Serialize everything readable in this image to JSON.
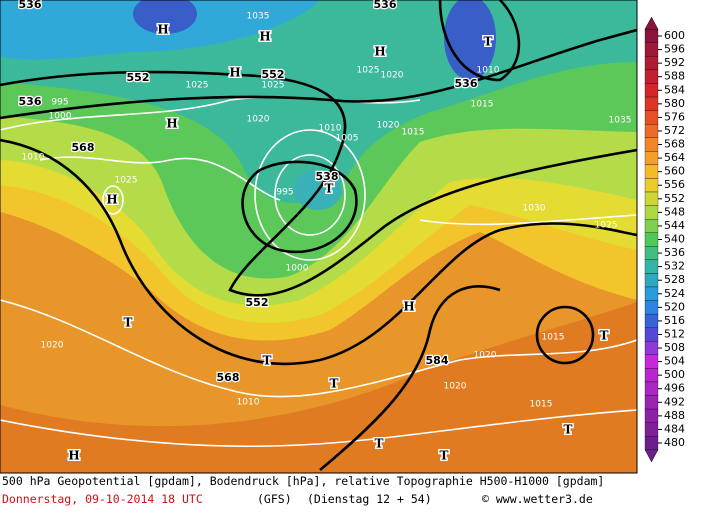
{
  "map": {
    "labels": [
      "536",
      "H",
      "1035",
      "H",
      "536",
      "T",
      "H",
      "1010",
      "552",
      "H",
      "552",
      "1025",
      "1025",
      "1025",
      "1020",
      "536",
      "1015",
      "536",
      "995",
      "1000",
      "H",
      "1020",
      "1010",
      "1005",
      "1020",
      "1015",
      "1035",
      "568",
      "1010",
      "1025",
      "995",
      "538",
      "T",
      "H",
      "1030",
      "1025",
      "1000",
      "552",
      "T",
      "H",
      "1015",
      "T",
      "1020",
      "1020",
      "584",
      "T",
      "568",
      "T",
      "1020",
      "1010",
      "1015",
      "T",
      "H",
      "T",
      "T"
    ],
    "legend": {
      "ticks": [
        600,
        596,
        592,
        588,
        584,
        580,
        576,
        572,
        568,
        564,
        560,
        556,
        552,
        548,
        544,
        540,
        536,
        532,
        528,
        524,
        520,
        516,
        512,
        508,
        504,
        500,
        496,
        492,
        488,
        484,
        480
      ]
    },
    "footer": {
      "line1": "500 hPa Geopotential [gpdam], Bodendruck [hPa], relative Topographie H500-H1000 [gpdam]",
      "date": "Donnerstag, 09-10-2014  18 UTC",
      "model": "(GFS)",
      "run": "(Dienstag 12 + 54)",
      "credit": "© www.wetter3.de"
    }
  }
}
